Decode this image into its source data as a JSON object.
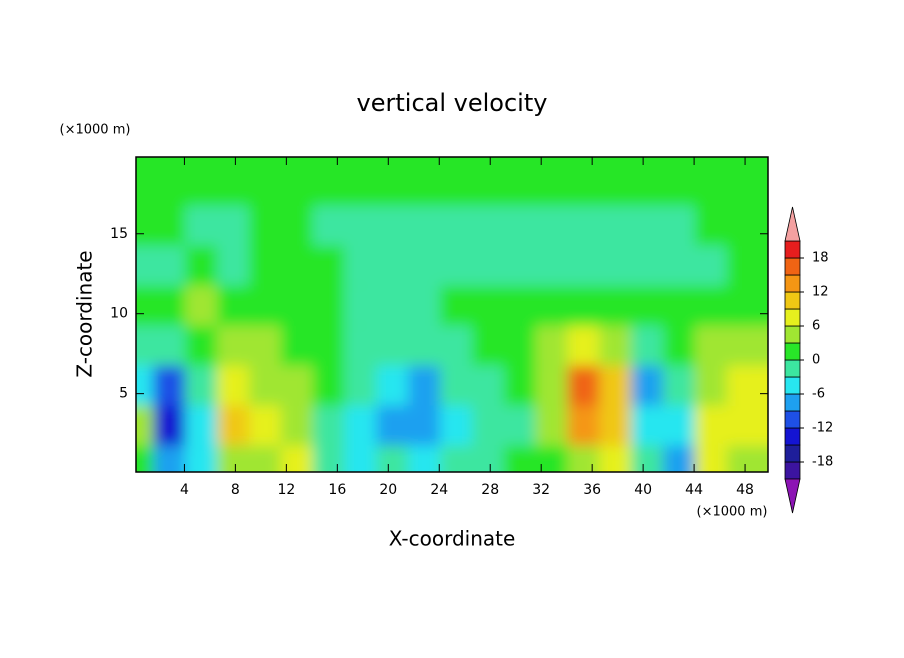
{
  "chart_data": {
    "type": "contour",
    "title": "vertical velocity",
    "x_label": "X-coordinate",
    "y_label": "Z-coordinate",
    "x_unit": "(×1000 m)",
    "y_unit": "(×1000 m)",
    "xlim": [
      0.2,
      49.8
    ],
    "ylim": [
      0.1,
      19.8
    ],
    "xticks": [
      4,
      8,
      12,
      16,
      20,
      24,
      28,
      32,
      36,
      40,
      44,
      48
    ],
    "yticks": [
      5,
      10,
      15
    ],
    "x": [
      1.25,
      3.75,
      6.25,
      8.75,
      11.25,
      13.75,
      16.25,
      18.75,
      21.25,
      23.75,
      26.25,
      28.75,
      31.25,
      33.75,
      36.25,
      38.75,
      41.25,
      43.75,
      46.25,
      48.75
    ],
    "y": [
      1.25,
      3.75,
      6.25,
      8.75,
      11.25,
      13.75,
      16.25,
      18.75
    ],
    "z": [
      [
        2,
        -8,
        -4,
        5,
        3,
        7,
        -2,
        -4,
        -3,
        -5,
        -3,
        -2,
        0,
        2,
        5,
        6,
        -2,
        -8,
        6,
        4
      ],
      [
        3,
        -14,
        -5,
        10,
        6,
        4,
        -1,
        -4,
        -7,
        -9,
        -4,
        -1,
        -1,
        3,
        13,
        10,
        -4,
        -5,
        7,
        8
      ],
      [
        -6,
        -12,
        -3,
        7,
        5,
        3,
        1,
        -3,
        -6,
        -7,
        -3,
        -1,
        1,
        4,
        15,
        10,
        -8,
        -2,
        5,
        8
      ],
      [
        -3,
        -3,
        1,
        3,
        3,
        2,
        1,
        -1,
        -3,
        -2,
        -1,
        0,
        1,
        3,
        6,
        4,
        -2,
        0,
        3,
        3
      ],
      [
        0,
        1,
        5,
        2,
        1,
        1,
        0,
        -1,
        -2,
        -1,
        0,
        1,
        0,
        1,
        1,
        1,
        0,
        1,
        1,
        0
      ],
      [
        -1,
        -1,
        0,
        -1,
        0,
        1,
        0,
        -2,
        -3,
        -2,
        -1,
        -2,
        -2,
        -1,
        -2,
        -3,
        -2,
        -1,
        -1,
        0
      ],
      [
        0,
        1,
        -1,
        -1,
        0,
        0,
        -1,
        -2,
        -2,
        -1,
        -1,
        -2,
        -1,
        -1,
        -2,
        -1,
        -2,
        -1,
        0,
        1
      ],
      [
        1,
        1,
        0,
        0,
        0,
        1,
        0,
        1,
        1,
        0,
        1,
        1,
        0,
        1,
        1,
        0,
        1,
        2,
        1,
        1
      ]
    ],
    "levels": [
      -21,
      -18,
      -15,
      -12,
      -9,
      -6,
      -3,
      0,
      3,
      6,
      9,
      12,
      15,
      18,
      21
    ],
    "colors": [
      "#8c14b4",
      "#3c14a0",
      "#1e1e9a",
      "#1414d2",
      "#1e50e6",
      "#1ea0f0",
      "#28e6f0",
      "#3ce6a0",
      "#28e628",
      "#a0e632",
      "#e6f01e",
      "#f0c814",
      "#f59614",
      "#f06414",
      "#e61e1e",
      "#f4a0a0"
    ],
    "colorbar_ticks": [
      -18,
      -12,
      -6,
      0,
      6,
      12,
      18
    ]
  }
}
